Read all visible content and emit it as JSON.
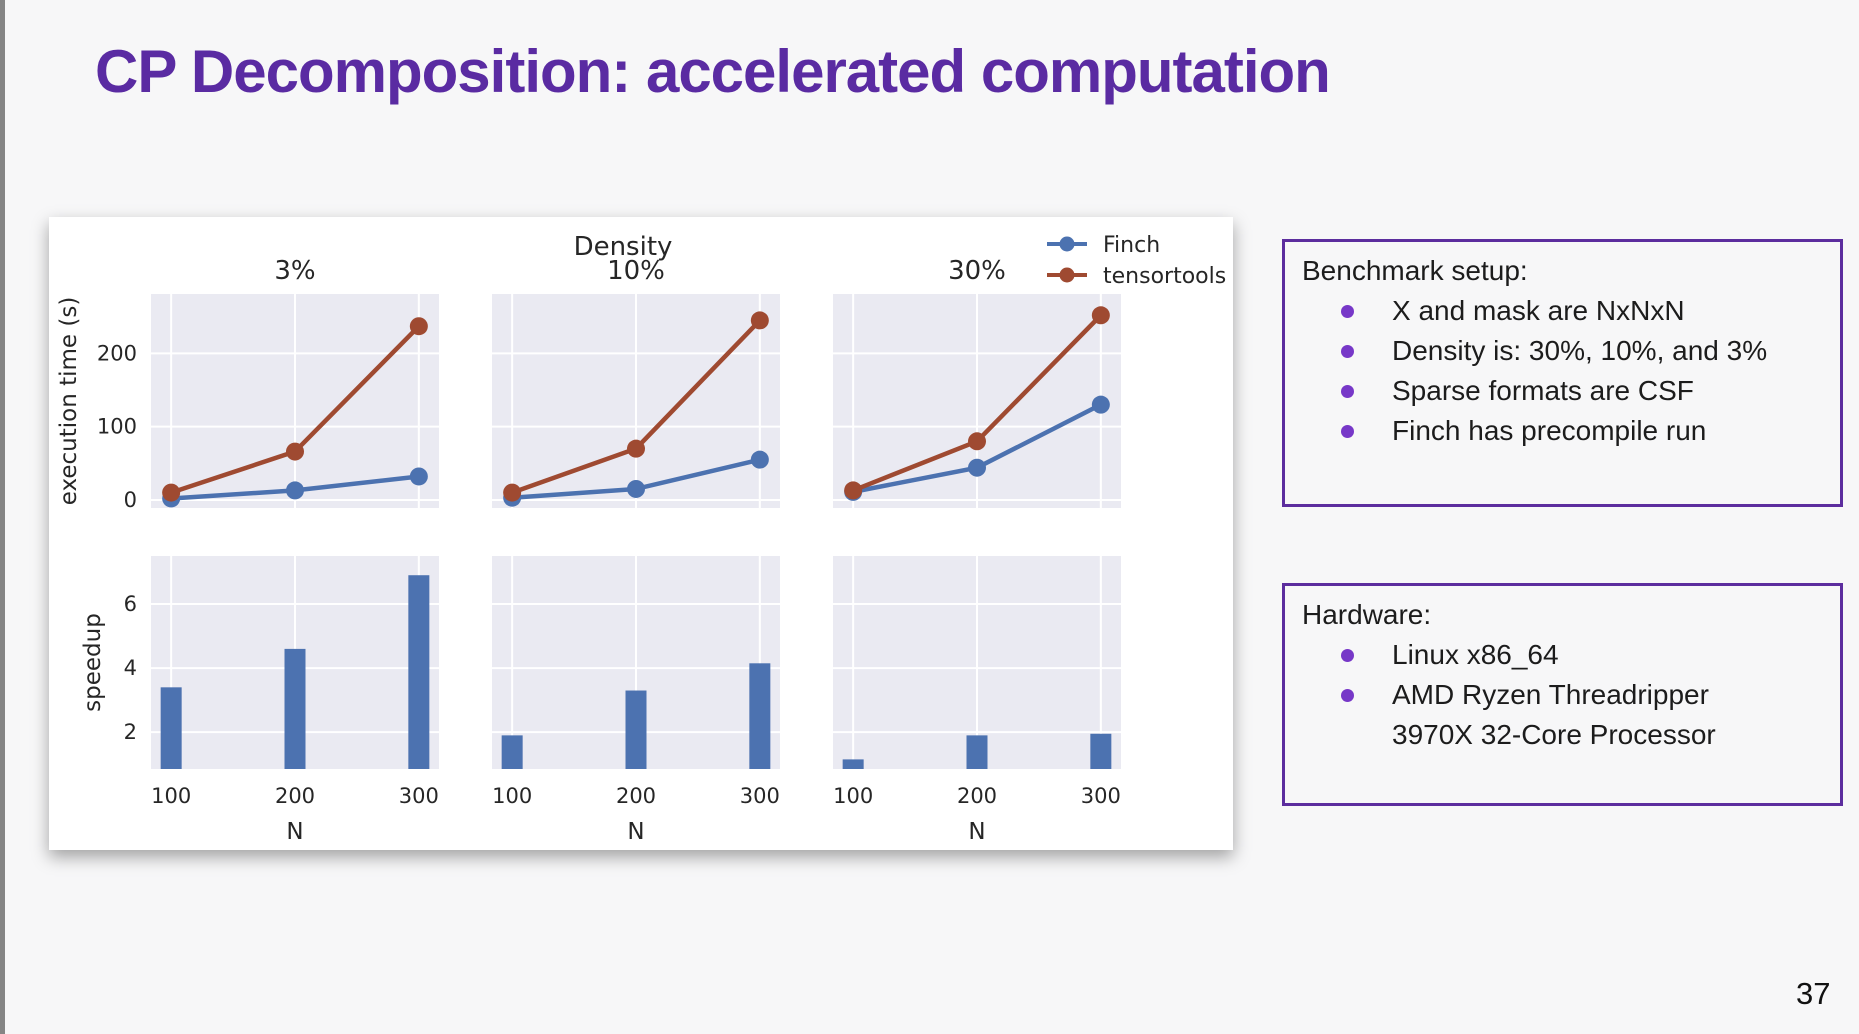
{
  "slide": {
    "title": "CP Decomposition: accelerated computation",
    "page_number": "37",
    "title_color": "#5a2ba2",
    "background_color": "#f7f7f8"
  },
  "benchmark_box": {
    "heading": "Benchmark setup:",
    "bullets": [
      "X and mask are NxNxN",
      "Density is: 30%, 10%, and 3%",
      "Sparse formats are CSF",
      "Finch has precompile run"
    ],
    "border_color": "#5c2d9e",
    "bullet_color": "#7738c8"
  },
  "hardware_box": {
    "heading": "Hardware:",
    "bullets": [
      "Linux x86_64",
      "AMD Ryzen Threadripper 3970X 32-Core Processor"
    ],
    "border_color": "#5c2d9e",
    "bullet_color": "#7738c8"
  },
  "chart_data": {
    "type": "grid of line and bar subplots (2 rows x 3 density columns)",
    "suptitle": "Density",
    "column_titles": [
      "3%",
      "10%",
      "30%"
    ],
    "x": [
      100,
      200,
      300
    ],
    "xlabel": "N",
    "legend": {
      "position": "top-right",
      "entries": [
        "Finch",
        "tensortools"
      ]
    },
    "colors": {
      "Finch": "#4c72b0",
      "tensortools": "#9f4a31"
    },
    "top_row": {
      "type": "line",
      "ylabel": "execution time (s)",
      "yticks": [
        0,
        100,
        200
      ],
      "ylim": [
        -11,
        281
      ],
      "grid": true,
      "series_by_column": [
        {
          "column": "3%",
          "Finch": [
            2,
            13,
            32
          ],
          "tensortools": [
            10,
            66,
            237
          ]
        },
        {
          "column": "10%",
          "Finch": [
            3,
            15,
            55
          ],
          "tensortools": [
            10,
            70,
            245
          ]
        },
        {
          "column": "30%",
          "Finch": [
            11,
            44,
            130
          ],
          "tensortools": [
            13,
            80,
            252
          ]
        }
      ]
    },
    "bottom_row": {
      "type": "bar",
      "ylabel": "speedup",
      "yticks": [
        2,
        4,
        6
      ],
      "ylim": [
        0.85,
        7.5
      ],
      "grid": true,
      "bar_color": "#4c72b0",
      "values_by_column": [
        {
          "column": "3%",
          "speedup": [
            3.4,
            4.6,
            6.9
          ]
        },
        {
          "column": "10%",
          "speedup": [
            1.9,
            3.3,
            4.15
          ]
        },
        {
          "column": "30%",
          "speedup": [
            1.15,
            1.9,
            1.95
          ]
        }
      ]
    },
    "plot_background": "#eaeaf2",
    "grid_color": "#ffffff",
    "text_color": "#262626"
  }
}
